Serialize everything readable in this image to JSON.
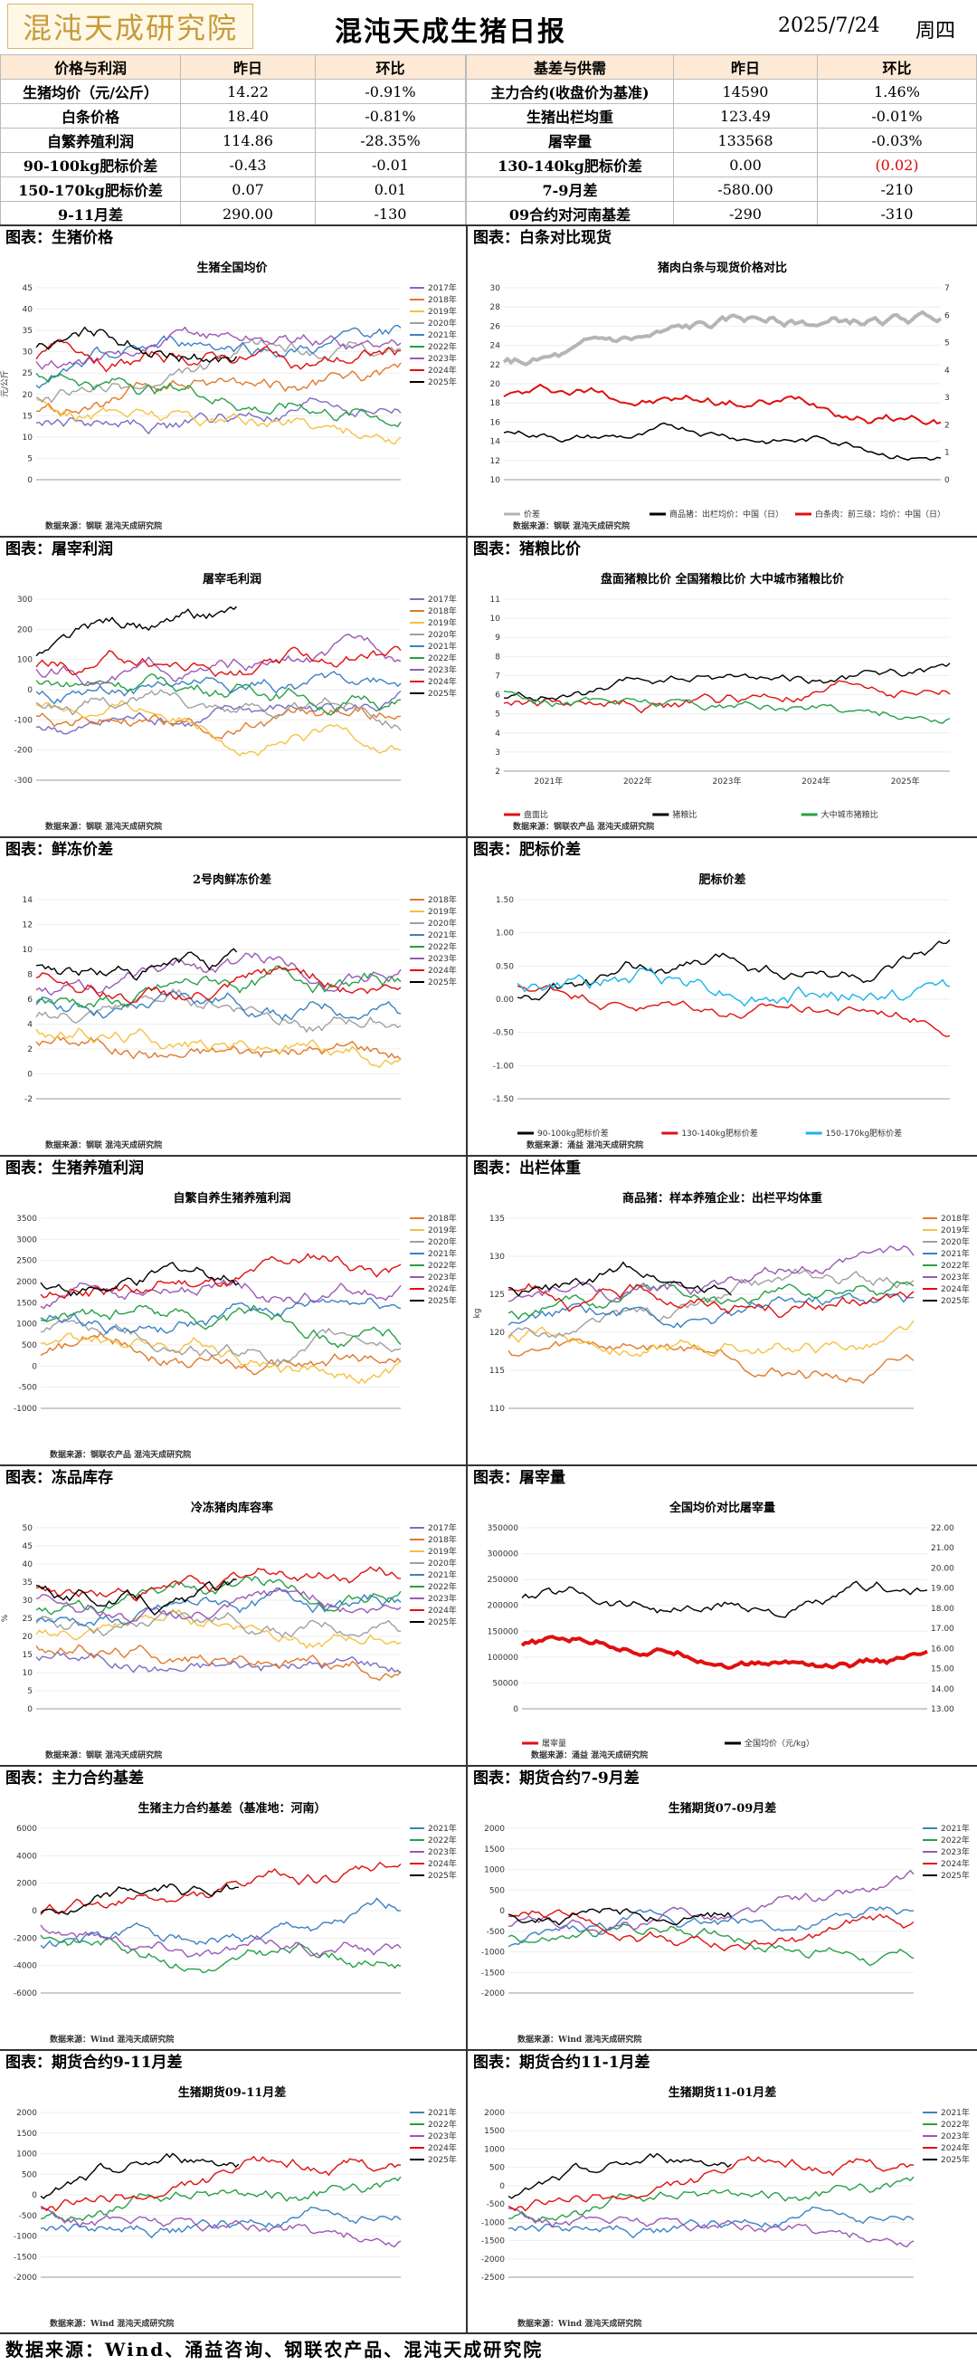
{
  "header": {
    "logo_text": "混沌天成研究院",
    "title": "混沌天成生猪日报",
    "date": "2025/7/24",
    "weekday": "周四"
  },
  "table_left": {
    "headers": [
      "价格与利润",
      "昨日",
      "环比"
    ],
    "rows": [
      [
        "生猪均价（元/公斤）",
        "14.22",
        "-0.91%"
      ],
      [
        "白条价格",
        "18.40",
        "-0.81%"
      ],
      [
        "自繁养殖利润",
        "114.86",
        "-28.35%"
      ],
      [
        "90-100kg肥标价差",
        "-0.43",
        "-0.01"
      ],
      [
        "150-170kg肥标价差",
        "0.07",
        "0.01"
      ],
      [
        "9-11月差",
        "290.00",
        "-130"
      ]
    ]
  },
  "table_right": {
    "headers": [
      "基差与供需",
      "昨日",
      "环比"
    ],
    "rows": [
      [
        "主力合约(收盘价为基准)",
        "14590",
        "1.46%"
      ],
      [
        "生猪出栏均重",
        "123.49",
        "-0.01%"
      ],
      [
        "屠宰量",
        "133568",
        "-0.03%"
      ],
      [
        "130-140kg肥标价差",
        "0.00",
        "(0.02)"
      ],
      [
        "7-9月差",
        "-580.00",
        "-210"
      ],
      [
        "09合约对河南基差",
        "-290",
        "-310"
      ]
    ]
  },
  "sections": [
    {
      "left": "图表：生猪价格",
      "right": "图表：白条对比现货"
    },
    {
      "left": "图表：屠宰利润",
      "right": "图表：猪粮比价"
    },
    {
      "left": "图表：鲜冻价差",
      "right": "图表：肥标价差"
    },
    {
      "left": "图表：生猪养殖利润",
      "right": "图表：出栏体重"
    },
    {
      "left": "图表：冻品库存",
      "right": "图表：屠宰量"
    },
    {
      "left": "图表：主力合约基差",
      "right": "图表：期货合约7-9月差"
    },
    {
      "left": "图表：期货合约9-11月差",
      "right": "图表：期货合约11-1月差"
    }
  ],
  "years_legend": [
    "2017年",
    "2018年",
    "2019年",
    "2020年",
    "2021年",
    "2022年",
    "2023年",
    "2024年",
    "2025年"
  ],
  "colors": {
    "2017": "#7b6ec2",
    "2018": "#e07a2b",
    "2019": "#f5c242",
    "2020": "#a0a0a0",
    "2021": "#3b82c4",
    "2022": "#27a047",
    "2023": "#9b59b6",
    "2024": "#e01010",
    "2025": "#000000"
  },
  "charts": {
    "hog_price": {
      "title": "生猪全国均价",
      "source": "数据来源：钢联  混沌天成研究院",
      "yticks": [
        "45",
        "40",
        "35",
        "30",
        "25",
        "20",
        "15",
        "10",
        "5",
        "0"
      ],
      "ylabel": "元/公斤"
    },
    "carcass": {
      "title": "猪肉白条与现货价格对比",
      "source": "数据来源：钢联  混沌天成研究院",
      "yticks": [
        "30",
        "28",
        "26",
        "24",
        "22",
        "20",
        "18",
        "16",
        "14",
        "12",
        "10"
      ],
      "y2ticks": [
        "7",
        "6",
        "5",
        "4",
        "3",
        "2",
        "1",
        "0"
      ],
      "legend": [
        "价差",
        "商品猪：出栏均价：中国（日）",
        "白条肉：前三级：均价：中国（日）"
      ]
    },
    "slaughter_profit": {
      "title": "屠宰毛利润",
      "source": "数据来源：钢联  混沌天成研究院",
      "yticks": [
        "300",
        "200",
        "100",
        "0",
        "-100",
        "-200",
        "-300"
      ]
    },
    "hog_grain": {
      "title": "盘面猪粮比价  全国猪粮比价  大中城市猪粮比价",
      "source": "数据来源：钢联农产品  混沌天成研究院",
      "yticks": [
        "11",
        "10",
        "9",
        "8",
        "7",
        "6",
        "5",
        "4",
        "3",
        "2"
      ],
      "xticks": [
        "2021年",
        "2022年",
        "2023年",
        "2024年",
        "2025年"
      ],
      "legend": [
        "盘面比",
        "猪粮比",
        "大中城市猪粮比"
      ]
    },
    "fresh_frozen": {
      "title": "2号肉鲜冻价差",
      "source": "数据来源：钢联  混沌天成研究院",
      "yticks": [
        "14",
        "12",
        "10",
        "8",
        "6",
        "4",
        "2",
        "0",
        "-2"
      ],
      "legend": [
        "2018年",
        "2019年",
        "2020年",
        "2021年",
        "2022年",
        "2023年",
        "2024年",
        "2025年"
      ]
    },
    "fat_spread": {
      "title": "肥标价差",
      "source": "数据来源：涌益  混沌天成研究院",
      "yticks": [
        "1.50",
        "1.00",
        "0.50",
        "0.00",
        "-0.50",
        "-1.00",
        "-1.50"
      ],
      "legend": [
        "90-100kg肥标价差",
        "130-140kg肥标价差",
        "150-170kg肥标价差"
      ]
    },
    "breeding_profit": {
      "title": "自繁自养生猪养殖利润",
      "source": "数据来源：钢联农产品  混沌天成研究院",
      "yticks": [
        "3500",
        "3000",
        "2500",
        "2000",
        "1500",
        "1000",
        "500",
        "0",
        "-500",
        "-1000"
      ],
      "legend": [
        "2018年",
        "2019年",
        "2020年",
        "2021年",
        "2022年",
        "2023年",
        "2024年",
        "2025年"
      ]
    },
    "weight": {
      "title": "商品猪：样本养殖企业：出栏平均体重",
      "source": "",
      "yticks": [
        "135",
        "130",
        "125",
        "120",
        "115",
        "110"
      ],
      "ylabel": "kg",
      "legend": [
        "2018年",
        "2019年",
        "2020年",
        "2021年",
        "2022年",
        "2023年",
        "2024年",
        "2025年"
      ]
    },
    "frozen_stock": {
      "title": "冷冻猪肉库容率",
      "source": "数据来源：钢联  混沌天成研究院",
      "yticks": [
        "50",
        "45",
        "40",
        "35",
        "30",
        "25",
        "20",
        "15",
        "10",
        "5",
        "0"
      ],
      "ylabel": "%"
    },
    "slaughter_vol": {
      "title": "全国均价对比屠宰量",
      "source": "数据来源：涌益  混沌天成研究院",
      "yticks": [
        "350000",
        "300000",
        "250000",
        "200000",
        "150000",
        "100000",
        "50000",
        "0"
      ],
      "y2ticks": [
        "22.00",
        "21.00",
        "20.00",
        "19.00",
        "18.00",
        "17.00",
        "16.00",
        "15.00",
        "14.00",
        "13.00"
      ],
      "legend": [
        "屠宰量",
        "全国均价（元/kg）"
      ]
    },
    "basis": {
      "title": "生猪主力合约基差（基准地：河南）",
      "source": "数据来源：Wind  混沌天成研究院",
      "yticks": [
        "6000",
        "4000",
        "2000",
        "0",
        "-2000",
        "-4000",
        "-6000"
      ],
      "legend": [
        "2021年",
        "2022年",
        "2023年",
        "2024年",
        "2025年"
      ]
    },
    "spread79": {
      "title": "生猪期货07-09月差",
      "source": "数据来源：Wind  混沌天成研究院",
      "yticks": [
        "2000",
        "1500",
        "1000",
        "500",
        "0",
        "-500",
        "-1000",
        "-1500",
        "-2000"
      ],
      "legend": [
        "2021年",
        "2022年",
        "2023年",
        "2024年",
        "2025年"
      ]
    },
    "spread911": {
      "title": "生猪期货09-11月差",
      "source": "数据来源：Wind  混沌天成研究院",
      "yticks": [
        "2000",
        "1500",
        "1000",
        "500",
        "0",
        "-500",
        "-1000",
        "-1500",
        "-2000"
      ],
      "legend": [
        "2021年",
        "2022年",
        "2023年",
        "2024年",
        "2025年"
      ]
    },
    "spread111": {
      "title": "生猪期货11-01月差",
      "source": "数据来源：Wind  混沌天成研究院",
      "yticks": [
        "2000",
        "1500",
        "1000",
        "500",
        "0",
        "-500",
        "-1000",
        "-1500",
        "-2000",
        "-2500"
      ],
      "legend": [
        "2021年",
        "2022年",
        "2023年",
        "2024年",
        "2025年"
      ]
    }
  },
  "footer": "数据来源：Wind、涌益咨询、钢联农产品、混沌天成研究院"
}
